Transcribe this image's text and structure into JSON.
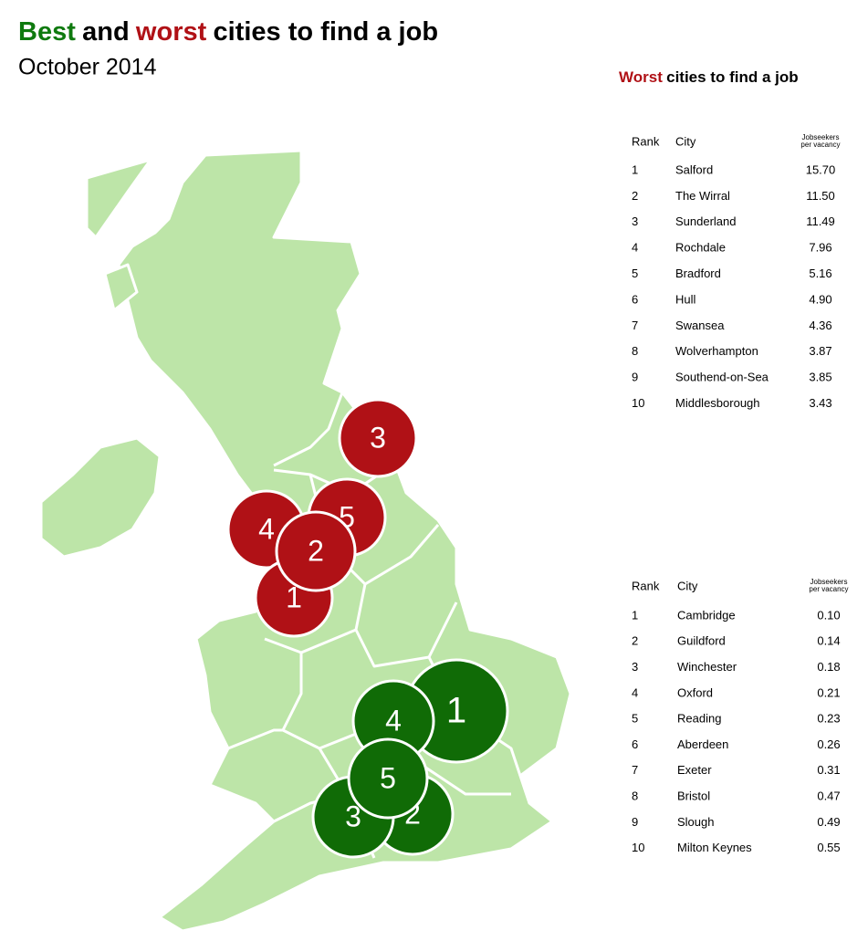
{
  "header": {
    "title": [
      {
        "text": "Best",
        "color": "#0f7a0f"
      },
      {
        "text": "and",
        "color": "#000000"
      },
      {
        "text": "worst",
        "color": "#b01116"
      },
      {
        "text": "cities to find a job",
        "color": "#000000"
      }
    ],
    "subtitle": "October 2014"
  },
  "worst_table": {
    "title": [
      {
        "text": "Worst",
        "color": "#b01116"
      },
      {
        "text": "cities to find a job",
        "color": "#000000"
      }
    ],
    "columns": [
      "Rank",
      "City",
      [
        "Jobseekers",
        "per vacancy"
      ]
    ],
    "rows": [
      [
        "1",
        "Salford",
        "15.70"
      ],
      [
        "2",
        "The Wirral",
        "11.50"
      ],
      [
        "3",
        "Sunderland",
        "11.49"
      ],
      [
        "4",
        "Rochdale",
        "7.96"
      ],
      [
        "5",
        "Bradford",
        "5.16"
      ],
      [
        "6",
        "Hull",
        "4.90"
      ],
      [
        "7",
        "Swansea",
        "4.36"
      ],
      [
        "8",
        "Wolverhampton",
        "3.87"
      ],
      [
        "9",
        "Southend-on-Sea",
        "3.85"
      ],
      [
        "10",
        "Middlesborough",
        "3.43"
      ]
    ]
  },
  "best_table": {
    "columns": [
      "Rank",
      "City",
      [
        "Jobseekers",
        "per vacancy"
      ]
    ],
    "rows": [
      [
        "1",
        "Cambridge",
        "0.10"
      ],
      [
        "2",
        "Guildford",
        "0.14"
      ],
      [
        "3",
        "Winchester",
        "0.18"
      ],
      [
        "4",
        "Oxford",
        "0.21"
      ],
      [
        "5",
        "Reading",
        "0.23"
      ],
      [
        "6",
        "Aberdeen",
        "0.26"
      ],
      [
        "7",
        "Exeter",
        "0.31"
      ],
      [
        "8",
        "Bristol",
        "0.47"
      ],
      [
        "9",
        "Slough",
        "0.49"
      ],
      [
        "10",
        "Milton Keynes",
        "0.55"
      ]
    ]
  },
  "map": {
    "worst_markers": [
      "3",
      "4",
      "5",
      "1",
      "2"
    ],
    "worst_color": "#b01116",
    "best_markers": [
      "1",
      "4",
      "2",
      "3",
      "5"
    ],
    "best_color": "#106b06"
  }
}
